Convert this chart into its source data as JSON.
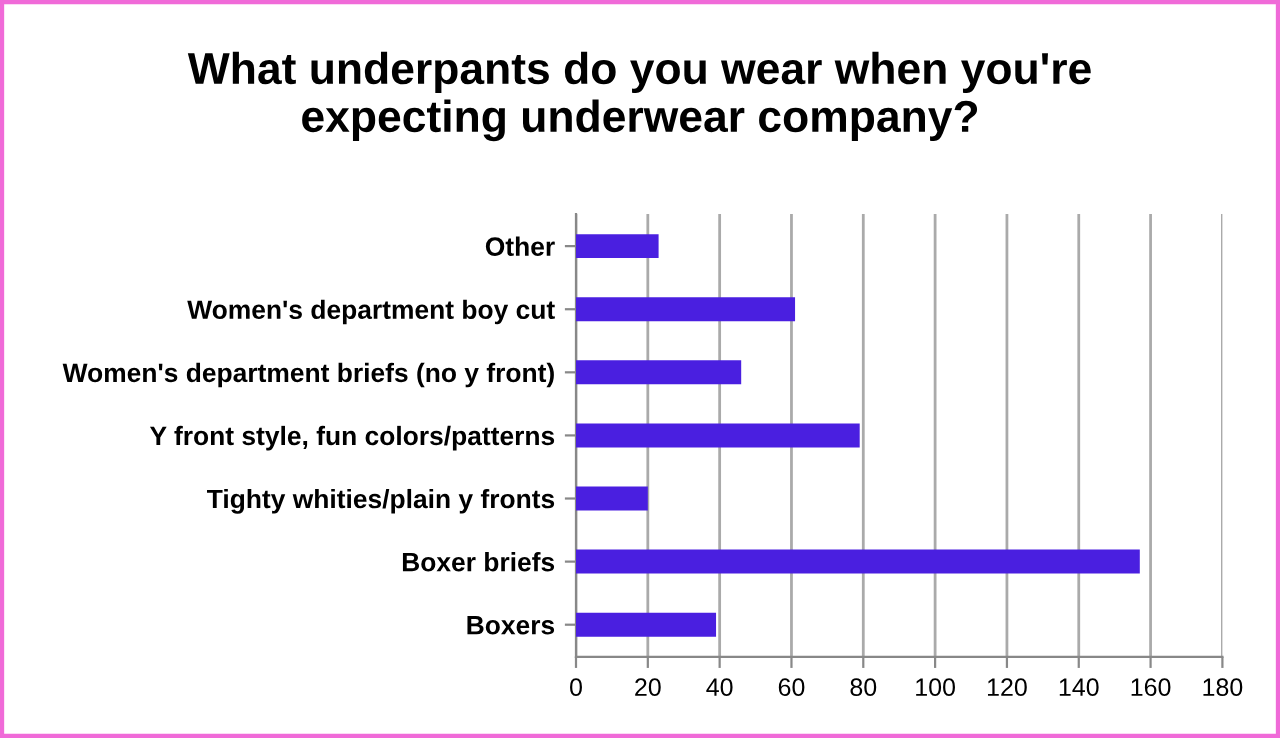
{
  "chart_data": {
    "type": "bar",
    "orientation": "horizontal",
    "title": "What underpants do you wear when you're\nexpecting underwear company?",
    "categories": [
      "Other",
      "Women's department boy cut",
      "Women's department briefs (no y front)",
      "Y front style, fun colors/patterns",
      "Tighty whities/plain y fronts",
      "Boxer briefs",
      "Boxers"
    ],
    "values": [
      23,
      61,
      46,
      79,
      20,
      157,
      39
    ],
    "color": "#4a1fe0",
    "xlim": [
      0,
      180
    ],
    "xticks": [
      0,
      20,
      40,
      60,
      80,
      100,
      120,
      140,
      160,
      180
    ],
    "grid": "x",
    "legend": false
  }
}
